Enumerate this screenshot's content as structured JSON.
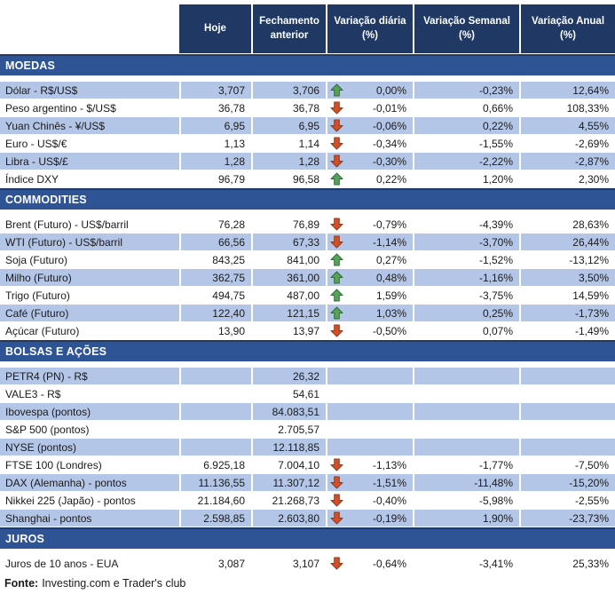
{
  "colors": {
    "header_bg": "#1F3864",
    "header_text": "#FFFFFF",
    "band_bg": "#2F5496",
    "band_border": "#1F3864",
    "row_shaded_bg": "#B4C6E7",
    "text": "#1A1A1A",
    "up_arrow": "#58A15B",
    "up_arrow_border": "#2F6B38",
    "down_arrow": "#CF5029",
    "down_arrow_border": "#8F3A1D"
  },
  "chart_data": {
    "type": "table",
    "columns": [
      "Hoje",
      "Fechamento anterior",
      "Variação diária (%)",
      "Variação Semanal (%)",
      "Variação Anual (%)"
    ],
    "sections": [
      {
        "title": "MOEDAS",
        "rows": [
          {
            "label": "Dólar - R$/US$",
            "hoje": "3,707",
            "fechamento": "3,706",
            "arrow": "up",
            "diaria": "0,00%",
            "semanal": "-0,23%",
            "anual": "12,64%",
            "shaded": true
          },
          {
            "label": "Peso argentino - $/US$",
            "hoje": "36,78",
            "fechamento": "36,78",
            "arrow": "down",
            "diaria": "-0,01%",
            "semanal": "0,66%",
            "anual": "108,33%",
            "shaded": false
          },
          {
            "label": "Yuan Chinês - ¥/US$",
            "hoje": "6,95",
            "fechamento": "6,95",
            "arrow": "down",
            "diaria": "-0,06%",
            "semanal": "0,22%",
            "anual": "4,55%",
            "shaded": true
          },
          {
            "label": "Euro - US$/€",
            "hoje": "1,13",
            "fechamento": "1,14",
            "arrow": "down",
            "diaria": "-0,34%",
            "semanal": "-1,55%",
            "anual": "-2,69%",
            "shaded": false
          },
          {
            "label": "Libra - US$/£",
            "hoje": "1,28",
            "fechamento": "1,28",
            "arrow": "down",
            "diaria": "-0,30%",
            "semanal": "-2,22%",
            "anual": "-2,87%",
            "shaded": true
          },
          {
            "label": "Índice DXY",
            "hoje": "96,79",
            "fechamento": "96,58",
            "arrow": "up",
            "diaria": "0,22%",
            "semanal": "1,20%",
            "anual": "2,30%",
            "shaded": false
          }
        ]
      },
      {
        "title": "COMMODITIES",
        "rows": [
          {
            "label": "Brent (Futuro) - US$/barril",
            "hoje": "76,28",
            "fechamento": "76,89",
            "arrow": "down",
            "diaria": "-0,79%",
            "semanal": "-4,39%",
            "anual": "28,63%",
            "shaded": false
          },
          {
            "label": "WTI (Futuro) - US$/barril",
            "hoje": "66,56",
            "fechamento": "67,33",
            "arrow": "down",
            "diaria": "-1,14%",
            "semanal": "-3,70%",
            "anual": "26,44%",
            "shaded": true
          },
          {
            "label": "Soja (Futuro)",
            "hoje": "843,25",
            "fechamento": "841,00",
            "arrow": "up",
            "diaria": "0,27%",
            "semanal": "-1,52%",
            "anual": "-13,12%",
            "shaded": false
          },
          {
            "label": "Milho (Futuro)",
            "hoje": "362,75",
            "fechamento": "361,00",
            "arrow": "up",
            "diaria": "0,48%",
            "semanal": "-1,16%",
            "anual": "3,50%",
            "shaded": true
          },
          {
            "label": "Trigo (Futuro)",
            "hoje": "494,75",
            "fechamento": "487,00",
            "arrow": "up",
            "diaria": "1,59%",
            "semanal": "-3,75%",
            "anual": "14,59%",
            "shaded": false
          },
          {
            "label": "Café (Futuro)",
            "hoje": "122,40",
            "fechamento": "121,15",
            "arrow": "up",
            "diaria": "1,03%",
            "semanal": "0,25%",
            "anual": "-1,73%",
            "shaded": true
          },
          {
            "label": "Açúcar (Futuro)",
            "hoje": "13,90",
            "fechamento": "13,97",
            "arrow": "down",
            "diaria": "-0,50%",
            "semanal": "0,07%",
            "anual": "-1,49%",
            "shaded": false
          }
        ]
      },
      {
        "title": "BOLSAS E AÇÕES",
        "rows": [
          {
            "label": "PETR4 (PN) - R$",
            "hoje": "",
            "fechamento": "26,32",
            "arrow": "",
            "diaria": "",
            "semanal": "",
            "anual": "",
            "shaded": true
          },
          {
            "label": "VALE3 - R$",
            "hoje": "",
            "fechamento": "54,61",
            "arrow": "",
            "diaria": "",
            "semanal": "",
            "anual": "",
            "shaded": false
          },
          {
            "label": "Ibovespa (pontos)",
            "hoje": "",
            "fechamento": "84.083,51",
            "arrow": "",
            "diaria": "",
            "semanal": "",
            "anual": "",
            "shaded": true
          },
          {
            "label": "S&P 500 (pontos)",
            "hoje": "",
            "fechamento": "2.705,57",
            "arrow": "",
            "diaria": "",
            "semanal": "",
            "anual": "",
            "shaded": false
          },
          {
            "label": "NYSE (pontos)",
            "hoje": "",
            "fechamento": "12.118,85",
            "arrow": "",
            "diaria": "",
            "semanal": "",
            "anual": "",
            "shaded": true
          },
          {
            "label": "FTSE 100 (Londres)",
            "hoje": "6.925,18",
            "fechamento": "7.004,10",
            "arrow": "down",
            "diaria": "-1,13%",
            "semanal": "-1,77%",
            "anual": "-7,50%",
            "shaded": false
          },
          {
            "label": "DAX (Alemanha) - pontos",
            "hoje": "11.136,55",
            "fechamento": "11.307,12",
            "arrow": "down",
            "diaria": "-1,51%",
            "semanal": "-11,48%",
            "anual": "-15,20%",
            "shaded": true
          },
          {
            "label": "Nikkei 225 (Japão) - pontos",
            "hoje": "21.184,60",
            "fechamento": "21.268,73",
            "arrow": "down",
            "diaria": "-0,40%",
            "semanal": "-5,98%",
            "anual": "-2,55%",
            "shaded": false
          },
          {
            "label": "Shanghai - pontos",
            "hoje": "2.598,85",
            "fechamento": "2.603,80",
            "arrow": "down",
            "diaria": "-0,19%",
            "semanal": "1,90%",
            "anual": "-23,73%",
            "shaded": true
          }
        ]
      },
      {
        "title": "JUROS",
        "rows": [
          {
            "label": "Juros de 10 anos - EUA",
            "hoje": "3,087",
            "fechamento": "3,107",
            "arrow": "down",
            "diaria": "-0,64%",
            "semanal": "-3,41%",
            "anual": "25,33%",
            "shaded": false
          }
        ]
      }
    ]
  },
  "footer": {
    "bold": "Fonte:",
    "text": "Investing.com e Trader's club"
  }
}
